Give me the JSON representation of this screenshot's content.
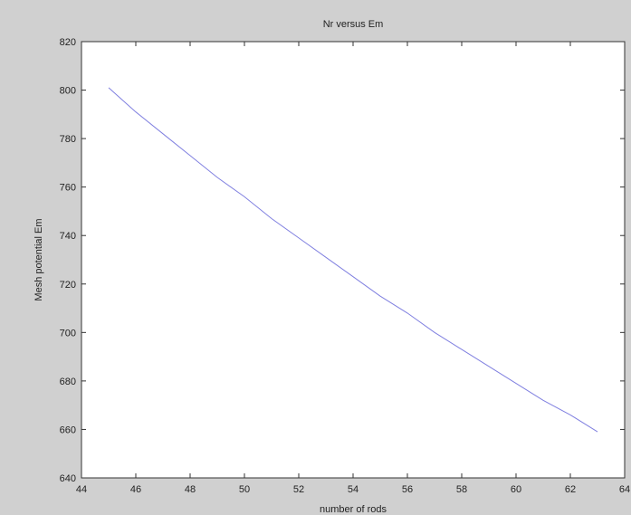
{
  "chart_data": {
    "type": "line",
    "title": "Nr versus Em",
    "xlabel": "number of rods",
    "ylabel": "Mesh potential Em",
    "xlim": [
      44,
      64
    ],
    "ylim": [
      640,
      820
    ],
    "xticks": [
      44,
      46,
      48,
      50,
      52,
      54,
      56,
      58,
      60,
      62,
      64
    ],
    "yticks": [
      640,
      660,
      680,
      700,
      720,
      740,
      760,
      780,
      800,
      820
    ],
    "grid": false,
    "series_color": "#8080e0",
    "series": [
      {
        "x": [
          45,
          46,
          47,
          48,
          49,
          50,
          51,
          52,
          53,
          54,
          55,
          56,
          57,
          58,
          59,
          60,
          61,
          62,
          63
        ],
        "y": [
          801,
          791,
          782,
          773,
          764,
          756,
          747,
          739,
          731,
          723,
          715,
          708,
          700,
          693,
          686,
          679,
          672,
          666,
          659
        ]
      }
    ]
  }
}
